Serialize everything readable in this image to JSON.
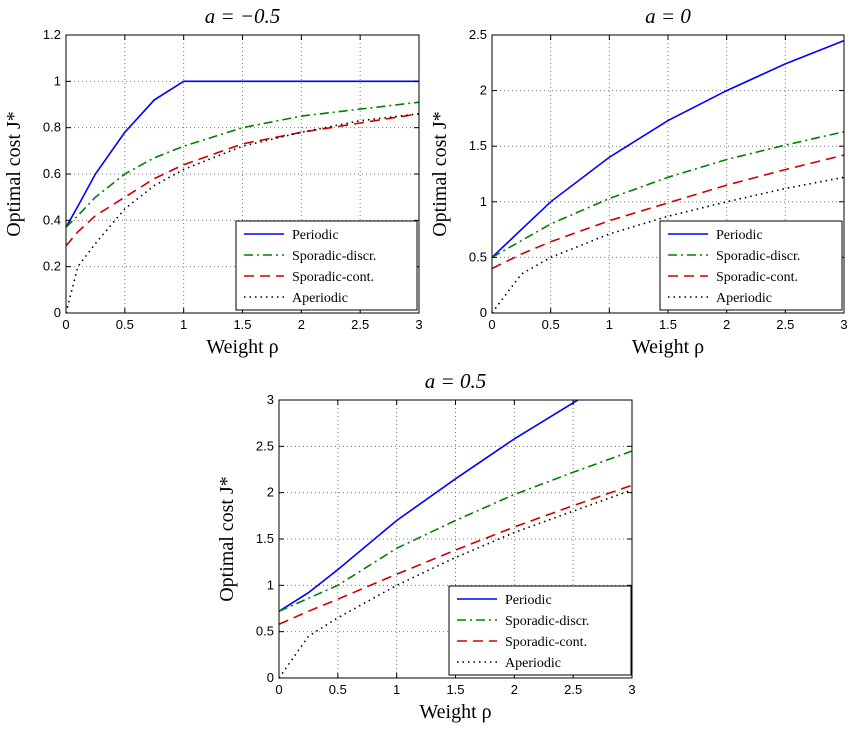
{
  "colors": {
    "periodic": "#0000ff",
    "sporadic_discr": "#008000",
    "sporadic_cont": "#cc0000",
    "aperiodic": "#000000",
    "grid": "#777777"
  },
  "chart_data": [
    {
      "type": "line",
      "title": "a = −0.5",
      "title_var": "a",
      "title_value": "−0.5",
      "xlabel": "Weight ρ",
      "ylabel": "Optimal cost J*",
      "xlim": [
        0,
        3
      ],
      "ylim": [
        0,
        1.2
      ],
      "xticks": [
        "0",
        "0.5",
        "1",
        "1.5",
        "2",
        "2.5",
        "3"
      ],
      "yticks": [
        "0",
        "0.2",
        "0.4",
        "0.6",
        "0.8",
        "1",
        "1.2"
      ],
      "grid": true,
      "legend_position": "bottom-right",
      "x": [
        0,
        0.1,
        0.25,
        0.5,
        0.75,
        1,
        1.5,
        2,
        2.5,
        3
      ],
      "series": [
        {
          "name": "Periodic",
          "style": "solid",
          "color_key": "periodic",
          "values": [
            0.37,
            0.46,
            0.6,
            0.78,
            0.92,
            1.0,
            1.0,
            1.0,
            1.0,
            1.0
          ]
        },
        {
          "name": "Sporadic-discr.",
          "style": "dashdot",
          "color_key": "sporadic_discr",
          "values": [
            0.37,
            0.42,
            0.5,
            0.6,
            0.67,
            0.72,
            0.8,
            0.85,
            0.88,
            0.91
          ]
        },
        {
          "name": "Sporadic-cont.",
          "style": "dashed",
          "color_key": "sporadic_cont",
          "values": [
            0.29,
            0.35,
            0.42,
            0.5,
            0.58,
            0.64,
            0.73,
            0.78,
            0.82,
            0.86
          ]
        },
        {
          "name": "Aperiodic",
          "style": "dotted",
          "color_key": "aperiodic",
          "values": [
            0.0,
            0.2,
            0.3,
            0.45,
            0.55,
            0.62,
            0.72,
            0.78,
            0.83,
            0.86
          ]
        }
      ]
    },
    {
      "type": "line",
      "title": "a = 0",
      "title_var": "a",
      "title_value": "0",
      "xlabel": "Weight ρ",
      "ylabel": "Optimal cost J*",
      "xlim": [
        0,
        3
      ],
      "ylim": [
        0,
        2.5
      ],
      "xticks": [
        "0",
        "0.5",
        "1",
        "1.5",
        "2",
        "2.5",
        "3"
      ],
      "yticks": [
        "0",
        "0.5",
        "1",
        "1.5",
        "2",
        "2.5"
      ],
      "grid": true,
      "legend_position": "bottom-right",
      "x": [
        0,
        0.25,
        0.5,
        1,
        1.5,
        2,
        2.5,
        3
      ],
      "series": [
        {
          "name": "Periodic",
          "style": "solid",
          "color_key": "periodic",
          "values": [
            0.5,
            0.75,
            1.0,
            1.4,
            1.73,
            2.0,
            2.24,
            2.45
          ]
        },
        {
          "name": "Sporadic-discr.",
          "style": "dashdot",
          "color_key": "sporadic_discr",
          "values": [
            0.5,
            0.65,
            0.8,
            1.03,
            1.22,
            1.38,
            1.51,
            1.63
          ]
        },
        {
          "name": "Sporadic-cont.",
          "style": "dashed",
          "color_key": "sporadic_cont",
          "values": [
            0.4,
            0.53,
            0.64,
            0.83,
            0.99,
            1.15,
            1.29,
            1.42
          ]
        },
        {
          "name": "Aperiodic",
          "style": "dotted",
          "color_key": "aperiodic",
          "values": [
            0.0,
            0.35,
            0.5,
            0.71,
            0.87,
            1.0,
            1.12,
            1.22
          ]
        }
      ]
    },
    {
      "type": "line",
      "title": "a = 0.5",
      "title_var": "a",
      "title_value": "0.5",
      "xlabel": "Weight ρ",
      "ylabel": "Optimal cost J*",
      "xlim": [
        0,
        3
      ],
      "ylim": [
        0,
        3
      ],
      "xticks": [
        "0",
        "0.5",
        "1",
        "1.5",
        "2",
        "2.5",
        "3"
      ],
      "yticks": [
        "0",
        "0.5",
        "1",
        "1.5",
        "2",
        "2.5",
        "3"
      ],
      "grid": true,
      "legend_position": "bottom-right",
      "x": [
        0,
        0.25,
        0.5,
        1,
        1.5,
        2,
        2.5,
        3
      ],
      "series": [
        {
          "name": "Periodic",
          "style": "solid",
          "color_key": "periodic",
          "values": [
            0.72,
            0.92,
            1.17,
            1.7,
            2.15,
            2.58,
            2.97,
            3.35
          ]
        },
        {
          "name": "Sporadic-discr.",
          "style": "dashdot",
          "color_key": "sporadic_discr",
          "values": [
            0.72,
            0.86,
            1.0,
            1.4,
            1.7,
            1.98,
            2.22,
            2.45
          ]
        },
        {
          "name": "Sporadic-cont.",
          "style": "dashed",
          "color_key": "sporadic_cont",
          "values": [
            0.58,
            0.72,
            0.85,
            1.12,
            1.38,
            1.63,
            1.86,
            2.08
          ]
        },
        {
          "name": "Aperiodic",
          "style": "dotted",
          "color_key": "aperiodic",
          "values": [
            0.0,
            0.45,
            0.65,
            1.0,
            1.3,
            1.57,
            1.8,
            2.03
          ]
        }
      ]
    }
  ]
}
